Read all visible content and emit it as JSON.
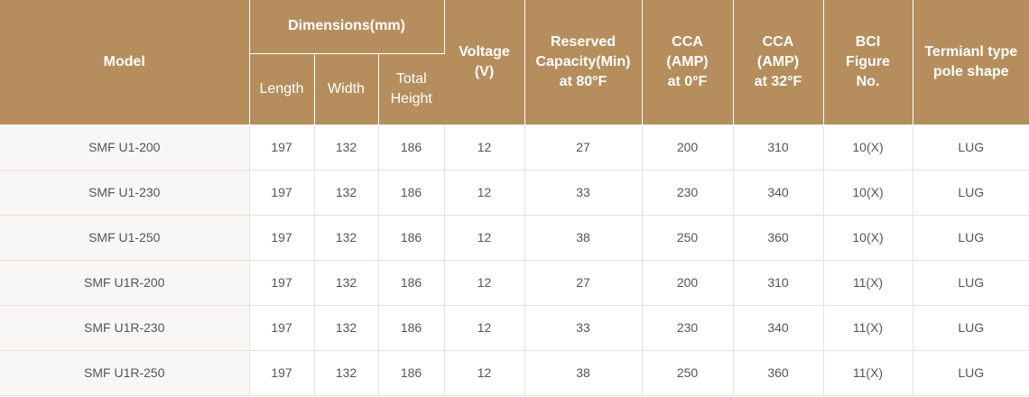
{
  "table": {
    "headers": {
      "model": "Model",
      "dimensions": "Dimensions(mm)",
      "length": "Length",
      "width": "Width",
      "total_height": "Total\nHeight",
      "voltage": "Voltage\n(V)",
      "reserved_capacity": "Reserved\nCapacity(Min)\nat 80°F",
      "cca_0f": "CCA\n(AMP)\nat 0°F",
      "cca_32f": "CCA\n(AMP)\nat 32°F",
      "bci": "BCI\nFigure\nNo.",
      "terminal": "Termianl type\npole shape"
    },
    "rows": [
      {
        "model": "SMF U1-200",
        "length": "197",
        "width": "132",
        "height": "186",
        "voltage": "12",
        "reserved": "27",
        "cca0": "200",
        "cca32": "310",
        "bci": "10(X)",
        "terminal": "LUG"
      },
      {
        "model": "SMF U1-230",
        "length": "197",
        "width": "132",
        "height": "186",
        "voltage": "12",
        "reserved": "33",
        "cca0": "230",
        "cca32": "340",
        "bci": "10(X)",
        "terminal": "LUG"
      },
      {
        "model": "SMF U1-250",
        "length": "197",
        "width": "132",
        "height": "186",
        "voltage": "12",
        "reserved": "38",
        "cca0": "250",
        "cca32": "360",
        "bci": "10(X)",
        "terminal": "LUG"
      },
      {
        "model": "SMF U1R-200",
        "length": "197",
        "width": "132",
        "height": "186",
        "voltage": "12",
        "reserved": "27",
        "cca0": "200",
        "cca32": "310",
        "bci": "11(X)",
        "terminal": "LUG"
      },
      {
        "model": "SMF U1R-230",
        "length": "197",
        "width": "132",
        "height": "186",
        "voltage": "12",
        "reserved": "33",
        "cca0": "230",
        "cca32": "340",
        "bci": "11(X)",
        "terminal": "LUG"
      },
      {
        "model": "SMF U1R-250",
        "length": "197",
        "width": "132",
        "height": "186",
        "voltage": "12",
        "reserved": "38",
        "cca0": "250",
        "cca32": "360",
        "bci": "11(X)",
        "terminal": "LUG"
      }
    ]
  },
  "colors": {
    "header_bg": "#b68e5d",
    "header_text": "#ffffff",
    "model_cell_bg": "#f8f7f5",
    "body_text": "#555555"
  }
}
